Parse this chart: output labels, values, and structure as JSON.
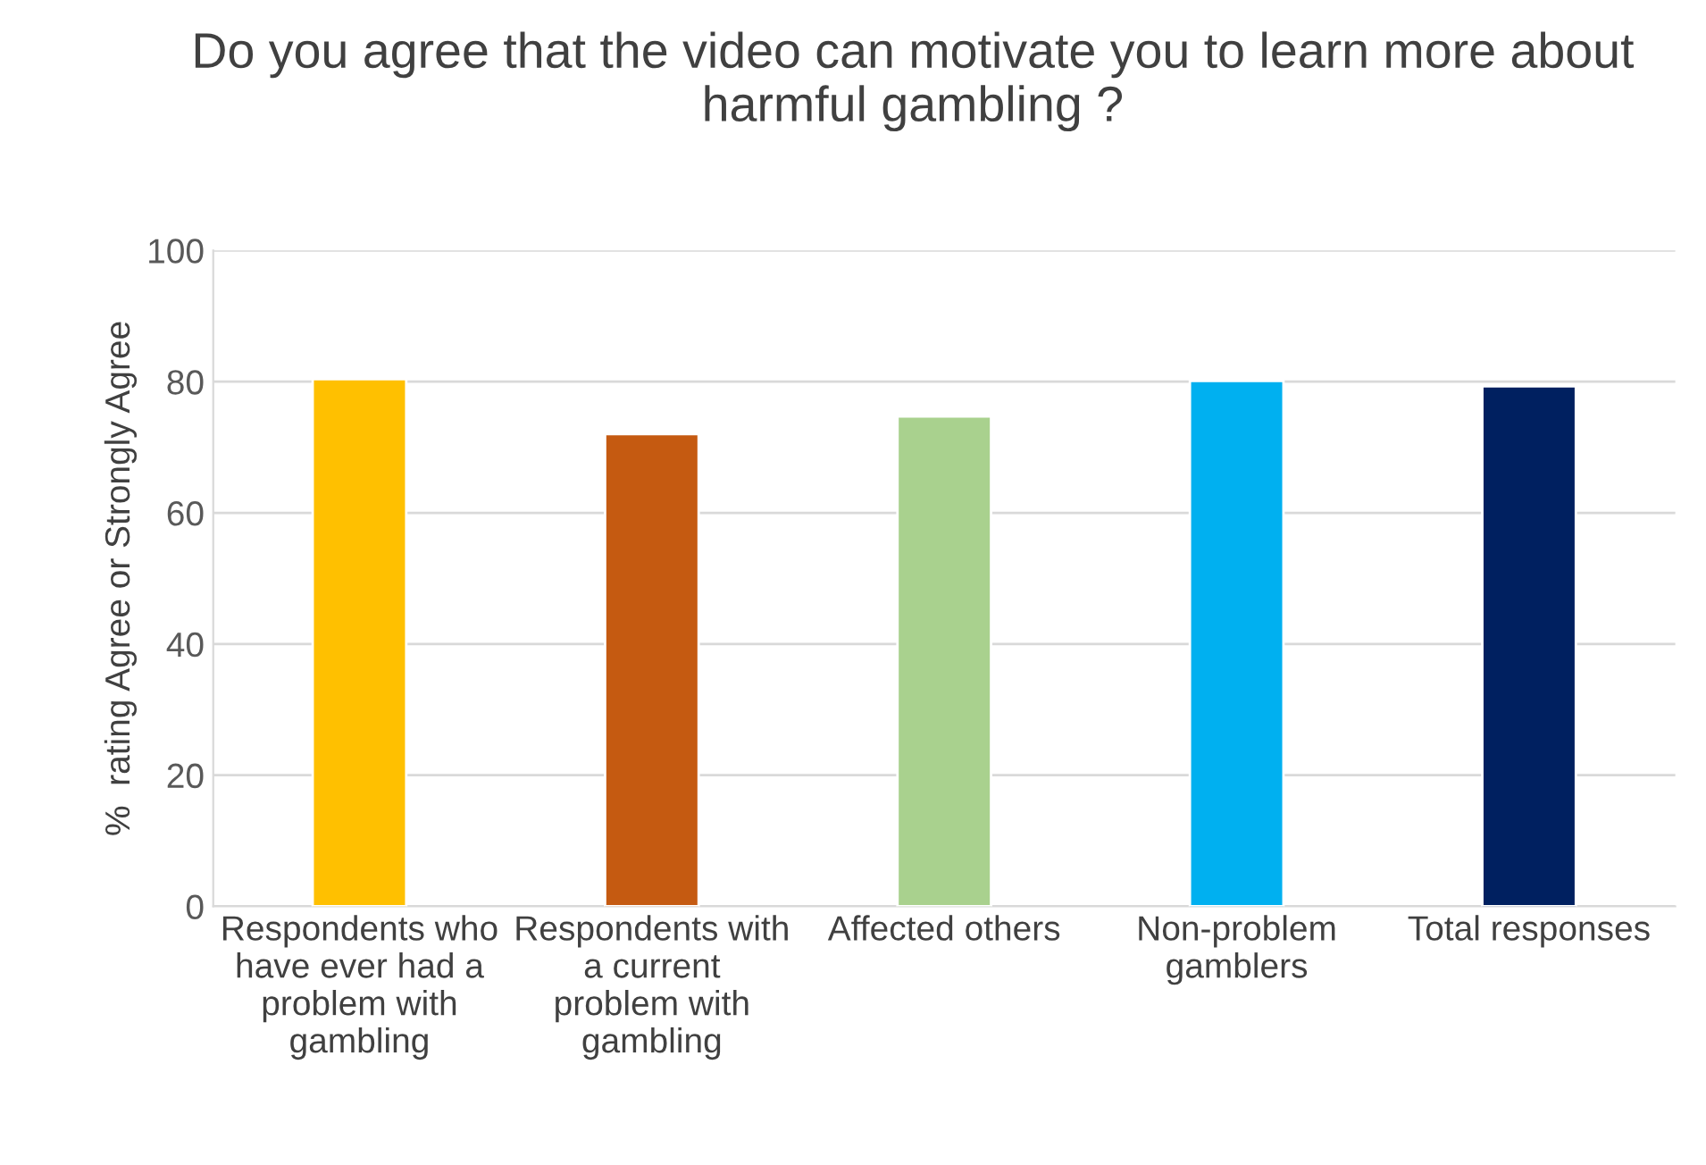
{
  "chart_data": {
    "type": "bar",
    "title": "Do you agree that the video can motivate you to learn more about harmful gambling ?",
    "ylabel": "%  rating Agree or Strongly Agree",
    "categories": [
      "Respondents who have ever had a problem with gambling",
      "Respondents with a current problem with gambling",
      "Affected others",
      "Non-problem gamblers",
      "Total responses"
    ],
    "values": [
      80.4,
      72,
      74.7,
      80.1,
      79.3
    ],
    "colors": [
      "#ffc000",
      "#c55a11",
      "#a9d18e",
      "#00b0f0",
      "#002060"
    ],
    "ylim": [
      0,
      100
    ],
    "yticks": [
      0,
      20,
      40,
      60,
      80,
      100
    ],
    "grid": "y",
    "legend": false
  }
}
